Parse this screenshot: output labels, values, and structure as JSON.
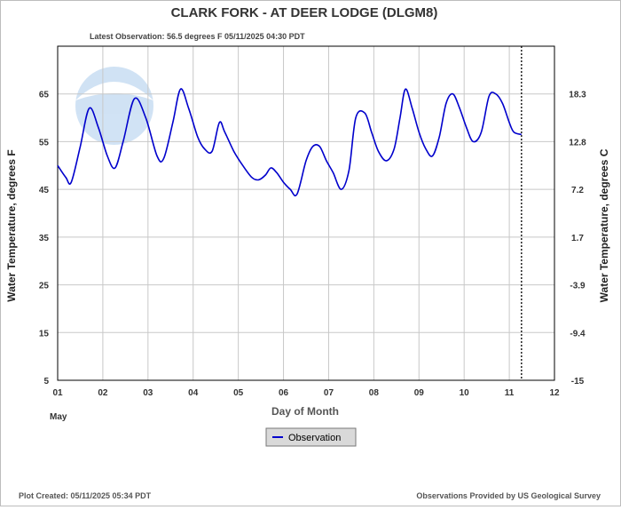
{
  "title": "CLARK FORK - AT DEER LODGE  (DLGM8)",
  "subtitle": "Latest Observation: 56.5 degrees F 05/11/2025 04:30 PDT",
  "footer": {
    "left": "Plot Created: 05/11/2025 05:34 PDT",
    "right": "Observations Provided by US Geological Survey"
  },
  "watermark": "NOAA",
  "colors": {
    "series": "#0000cc",
    "grid": "#c8c8c8",
    "axis_text": "#333333"
  },
  "chart_data": {
    "type": "line",
    "title": "CLARK FORK - AT DEER LODGE  (DLGM8)",
    "xlabel": "Day of Month",
    "xlabel_sub": "May",
    "ylabel": "Water Temperature, degrees F",
    "ylabel_right": "Water Temperature, degrees C",
    "xlim": [
      1,
      12
    ],
    "ylim": [
      5,
      75
    ],
    "x_ticks": [
      1,
      2,
      3,
      4,
      5,
      6,
      7,
      8,
      9,
      10,
      11,
      12
    ],
    "x_tick_labels": [
      "01",
      "02",
      "03",
      "04",
      "05",
      "06",
      "07",
      "08",
      "09",
      "10",
      "11",
      "12"
    ],
    "y_ticks": [
      5,
      15,
      25,
      35,
      45,
      55,
      65
    ],
    "y_tick_labels": [
      "5",
      "15",
      "25",
      "35",
      "45",
      "55",
      "65"
    ],
    "y2_ticks": [
      5,
      15,
      25,
      35,
      45,
      55,
      65
    ],
    "y2_tick_labels": [
      "-15",
      "-9.4",
      "-3.9",
      "1.7",
      "7.2",
      "12.8",
      "18.3"
    ],
    "grid": true,
    "current_time_marker": 11.27,
    "legend": {
      "position": "bottom-center",
      "entries": [
        "Observation"
      ]
    },
    "series": [
      {
        "name": "Observation",
        "x": [
          1.0,
          1.18,
          1.3,
          1.5,
          1.7,
          1.9,
          2.1,
          2.27,
          2.45,
          2.7,
          2.95,
          3.2,
          3.35,
          3.55,
          3.72,
          3.9,
          4.1,
          4.25,
          4.42,
          4.58,
          4.7,
          4.9,
          5.1,
          5.3,
          5.45,
          5.6,
          5.72,
          5.85,
          6.0,
          6.15,
          6.3,
          6.5,
          6.65,
          6.8,
          6.95,
          7.1,
          7.28,
          7.45,
          7.6,
          7.8,
          7.95,
          8.1,
          8.28,
          8.45,
          8.58,
          8.7,
          8.85,
          9.0,
          9.15,
          9.3,
          9.45,
          9.6,
          9.75,
          9.9,
          10.05,
          10.2,
          10.38,
          10.55,
          10.7,
          10.85,
          11.0,
          11.1,
          11.27
        ],
        "values": [
          50.0,
          47.5,
          46.5,
          54,
          62,
          58,
          52,
          49.5,
          55,
          64,
          60,
          52,
          51.5,
          59,
          66,
          62,
          56,
          53.5,
          53,
          59,
          57,
          53,
          50,
          47.5,
          47,
          48,
          49.5,
          48.5,
          46.5,
          45,
          44,
          51,
          54,
          54,
          51,
          48.5,
          45,
          49,
          60,
          61,
          57,
          53,
          51,
          53.5,
          60,
          66,
          62,
          57,
          53.5,
          52,
          56,
          63,
          65,
          62,
          58,
          55,
          57,
          64.5,
          65,
          63,
          59,
          57,
          56.5
        ]
      }
    ]
  }
}
